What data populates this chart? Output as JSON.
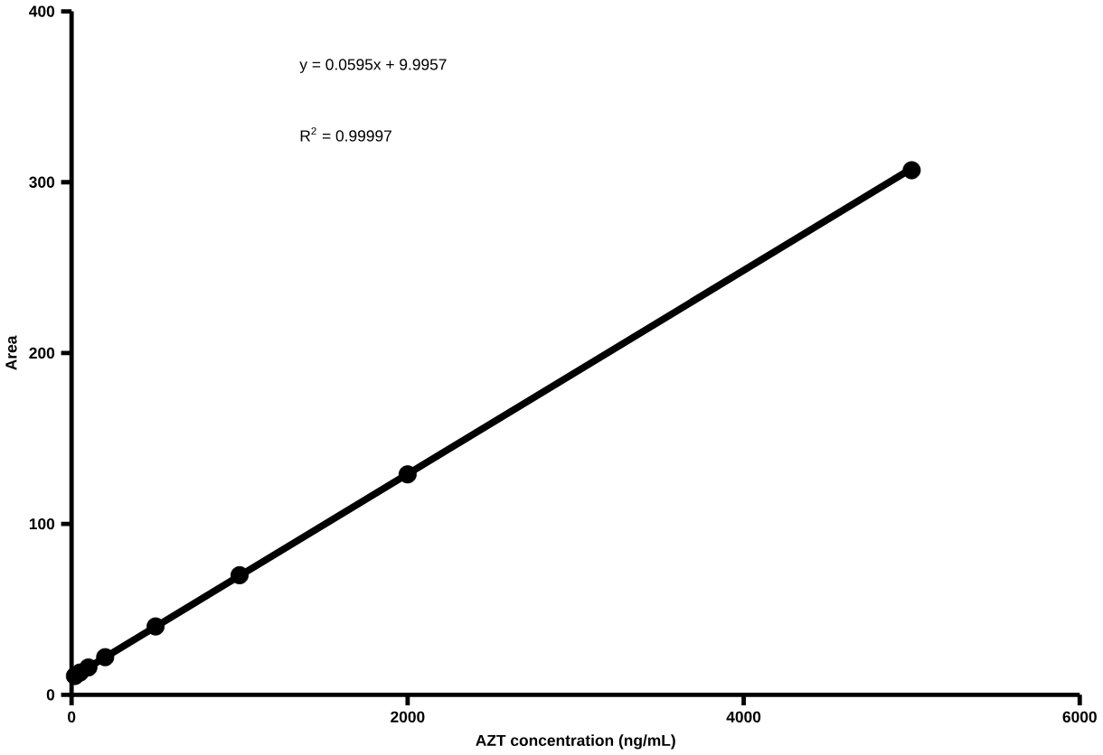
{
  "chart_data": {
    "type": "scatter",
    "xlabel": "AZT concentration (ng/mL)",
    "ylabel": "Area",
    "xlim": [
      0,
      6000
    ],
    "ylim": [
      0,
      400
    ],
    "xticks": [
      0,
      2000,
      4000,
      6000
    ],
    "yticks": [
      0,
      100,
      200,
      300,
      400
    ],
    "annotations": [
      "y = 0.0595x + 9.9957",
      "R$^{2}$ = 0.99997"
    ],
    "series": [
      {
        "type": "line",
        "color": "#000000",
        "marker": "none",
        "line_style": "solid",
        "x": [
          0,
          5000
        ],
        "values": [
          10,
          308
        ]
      },
      {
        "color": "#000000",
        "marker": "circle",
        "x": [
          20,
          50,
          100,
          200,
          500,
          1000,
          2000,
          5000
        ],
        "values": [
          11,
          13,
          16,
          22,
          40,
          70,
          129,
          307
        ]
      }
    ]
  }
}
